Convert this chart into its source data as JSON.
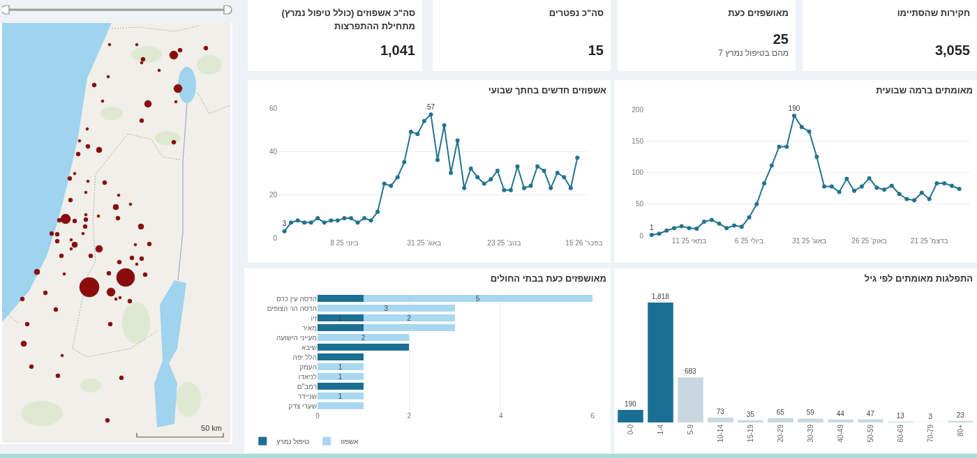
{
  "chart_data": [
    {
      "type": "other",
      "title": "חקירות שהסתיימו",
      "annotations": [
        "3,055"
      ]
    },
    {
      "type": "other",
      "title": "מאושפזים כעת",
      "annotations": [
        "25",
        "מהם בטיפול נמרץ 7"
      ]
    },
    {
      "type": "other",
      "title": "סה\"כ נפטרים",
      "annotations": [
        "15"
      ]
    },
    {
      "type": "other",
      "title": "סה\"כ אשפוזים (כולל טיפול נמרץ) מתחילת ההתפרצות",
      "annotations": [
        "1,041"
      ]
    },
    {
      "type": "line",
      "title": "מאומתים ברמה שבועית",
      "x": [
        "2025-04-06",
        "2025-04-13",
        "2025-04-20",
        "2025-04-27",
        "2025-05-04",
        "2025-05-11",
        "2025-05-18",
        "2025-05-25",
        "2025-06-01",
        "2025-06-08",
        "2025-06-15",
        "2025-06-22",
        "2025-06-29",
        "2025-07-06",
        "2025-07-13",
        "2025-07-20",
        "2025-07-27",
        "2025-08-03",
        "2025-08-10",
        "2025-08-17",
        "2025-08-24",
        "2025-08-31",
        "2025-09-07",
        "2025-09-14",
        "2025-09-21",
        "2025-09-28",
        "2025-10-05",
        "2025-10-12",
        "2025-10-19",
        "2025-10-26",
        "2025-11-02",
        "2025-11-09",
        "2025-11-16",
        "2025-11-23",
        "2025-11-30",
        "2025-12-07",
        "2025-12-14",
        "2025-12-21",
        "2025-12-28",
        "2026-01-04",
        "2026-01-11",
        "2026-01-18"
      ],
      "values": [
        1,
        3,
        8,
        12,
        15,
        12,
        11,
        22,
        25,
        19,
        12,
        16,
        14,
        29,
        50,
        83,
        111,
        141,
        141,
        190,
        172,
        165,
        125,
        78,
        78,
        69,
        90,
        71,
        78,
        91,
        76,
        73,
        79,
        66,
        58,
        56,
        68,
        58,
        83,
        83,
        79,
        74
      ],
      "value_labels": [
        "1",
        null,
        null,
        null,
        null,
        null,
        null,
        null,
        null,
        null,
        null,
        null,
        null,
        null,
        null,
        null,
        null,
        null,
        null,
        "190",
        null,
        null,
        null,
        null,
        null,
        null,
        null,
        null,
        null,
        null,
        null,
        null,
        null,
        null,
        null,
        null,
        null,
        null,
        null,
        null,
        null,
        null
      ],
      "color": "#23738f",
      "marker": "circle",
      "grid": "y",
      "xlim": [
        "2025-03-30",
        "2026-01-28"
      ],
      "xticks": [
        {
          "value": "2025-05-11",
          "label": "במאי 25 11"
        },
        {
          "value": "2025-07-06",
          "label": "ביולי 25 6"
        },
        {
          "value": "2025-08-31",
          "label": "באוג' 25 31"
        },
        {
          "value": "2025-10-26",
          "label": "באוק' 25 26"
        },
        {
          "value": "2025-12-21",
          "label": "בדצמ' 25 21"
        }
      ],
      "ylim": [
        0,
        200
      ],
      "yticks": [
        0,
        50,
        100,
        150,
        200
      ]
    },
    {
      "type": "line",
      "title": "אשפוזים חדשים בחתך שבועי",
      "x": [
        "2025-04-06",
        "2025-04-13",
        "2025-04-20",
        "2025-04-27",
        "2025-05-04",
        "2025-05-11",
        "2025-05-18",
        "2025-05-25",
        "2025-06-01",
        "2025-06-08",
        "2025-06-15",
        "2025-06-22",
        "2025-06-29",
        "2025-07-06",
        "2025-07-13",
        "2025-07-20",
        "2025-07-27",
        "2025-08-03",
        "2025-08-10",
        "2025-08-17",
        "2025-08-24",
        "2025-08-31",
        "2025-09-07",
        "2025-09-14",
        "2025-09-21",
        "2025-09-28",
        "2025-10-05",
        "2025-10-12",
        "2025-10-19",
        "2025-10-26",
        "2025-11-02",
        "2025-11-09",
        "2025-11-16",
        "2025-11-23",
        "2025-11-30",
        "2025-12-07",
        "2025-12-14",
        "2025-12-21",
        "2025-12-28",
        "2026-01-04",
        "2026-01-11",
        "2026-01-18",
        "2026-01-25",
        "2026-02-01",
        "2026-02-08"
      ],
      "values": [
        3,
        7,
        8,
        7,
        7,
        9,
        7,
        8,
        8,
        9,
        9,
        7,
        9,
        8,
        12,
        25,
        24,
        28,
        35,
        49,
        48,
        54,
        57,
        36,
        52,
        30,
        45,
        23,
        32,
        28,
        25,
        27,
        31,
        22,
        22,
        33,
        23,
        24,
        33,
        31,
        23,
        30,
        28,
        23,
        37
      ],
      "value_labels": [
        "3",
        null,
        null,
        null,
        null,
        null,
        null,
        null,
        null,
        null,
        null,
        null,
        null,
        null,
        null,
        null,
        null,
        null,
        null,
        null,
        null,
        null,
        "57",
        null,
        null,
        null,
        null,
        null,
        null,
        null,
        null,
        null,
        null,
        null,
        null,
        null,
        null,
        null,
        null,
        null,
        null,
        null,
        null,
        null,
        null
      ],
      "color": "#23738f",
      "marker": "circle",
      "grid": "y",
      "xlim": [
        "2025-03-30",
        "2026-02-18"
      ],
      "xticks": [
        {
          "value": "2025-06-08",
          "label": "ביוני 25 8"
        },
        {
          "value": "2025-08-31",
          "label": "באוג' 25 31"
        },
        {
          "value": "2025-11-23",
          "label": "בנוב' 25 23"
        },
        {
          "value": "2026-02-15",
          "label": "בפבר' 26 15"
        }
      ],
      "ylim": [
        0,
        60
      ],
      "yticks": [
        0,
        20,
        40,
        60
      ]
    },
    {
      "type": "bar",
      "title": "התפלגות מאומתים לפי גיל",
      "categories": [
        "0-0",
        "1-4",
        "5-9",
        "10-14",
        "15-19",
        "20-29",
        "30-39",
        "40-49",
        "50-59",
        "60-69",
        "70-79",
        "80+"
      ],
      "values": [
        190,
        1818,
        683,
        73,
        35,
        65,
        59,
        44,
        47,
        13,
        3,
        23
      ],
      "value_labels": [
        "190",
        "1,818",
        "683",
        "73",
        "35",
        "65",
        "59",
        "44",
        "47",
        "13",
        "3",
        "23"
      ],
      "colors": [
        "#1b6f93",
        "#1b6f93",
        "#c9d7e0",
        "#c9d7e0",
        "#c9d7e0",
        "#c9d7e0",
        "#c9d7e0",
        "#c9d7e0",
        "#c9d7e0",
        "#c9d7e0",
        "#c9d7e0",
        "#c9d7e0"
      ],
      "tick_labels": "x"
    },
    {
      "type": "bar",
      "title": "מאושפזים כעת בבתי החולים",
      "orientation": "horizontal",
      "stacked": true,
      "categories": [
        "הדסה עין כרם",
        "הדסה הר הצופים",
        "זיו",
        "מאיר",
        "מעייני הישועה",
        "שיבא",
        "הלל יפה",
        "העמק",
        "לניאדו",
        "רמב\"ם",
        "שניידר",
        "שערי צדק"
      ],
      "series": [
        {
          "name": "טיפול נמרץ",
          "color": "#1b6f93",
          "values": [
            1,
            null,
            1,
            1,
            null,
            2,
            1,
            null,
            null,
            1,
            null,
            null
          ],
          "value_labels": [
            null,
            null,
            "1",
            null,
            null,
            null,
            null,
            null,
            null,
            null,
            null,
            null
          ]
        },
        {
          "name": "אשפוז",
          "color": "#a8d8f0",
          "values": [
            5,
            3,
            2,
            2,
            2,
            null,
            null,
            1,
            1,
            null,
            1,
            1
          ],
          "value_labels": [
            "5",
            "3",
            "2",
            null,
            "2",
            null,
            null,
            "1",
            "1",
            null,
            "1",
            null
          ]
        }
      ],
      "xlim": [
        0,
        6
      ],
      "xticks": [
        0,
        2,
        4,
        6
      ],
      "grid": "x",
      "legend": "bottom left"
    },
    {
      "type": "other",
      "annotations": [
        "50 km"
      ]
    }
  ]
}
